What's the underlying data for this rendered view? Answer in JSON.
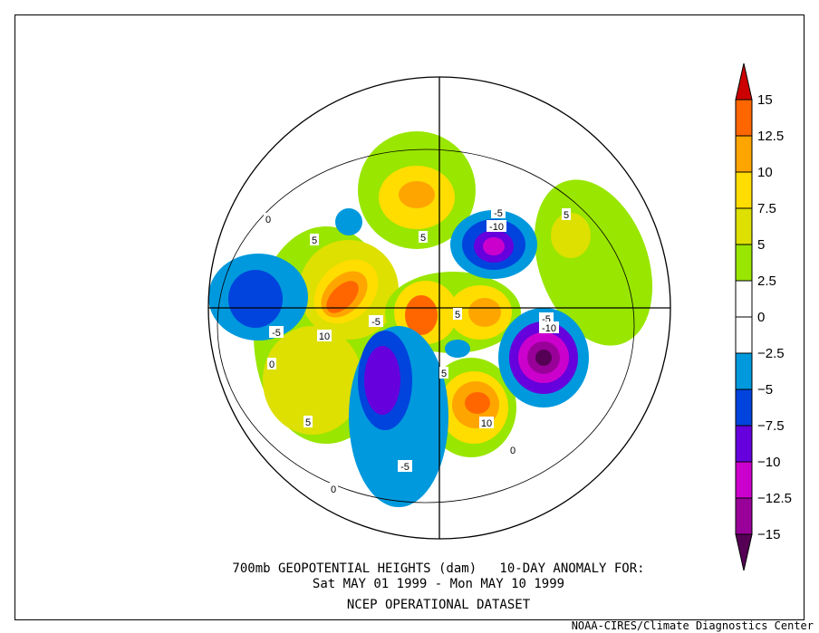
{
  "title": {
    "line1": "700mb GEOPOTENTIAL HEIGHTS (dam)   10-DAY ANOMALY FOR:",
    "line2": "Sat MAY 01 1999 - Mon MAY 10 1999",
    "line3": "NCEP OPERATIONAL DATASET"
  },
  "credit": "NOAA-CIRES/Climate Diagnostics Center",
  "legend": {
    "levels": [
      "15",
      "12.5",
      "10",
      "7.5",
      "5",
      "2.5",
      "0",
      "-2.5",
      "-5",
      "-7.5",
      "-10",
      "-12.5",
      "-15"
    ],
    "colors": [
      "#cc0000",
      "#ff6600",
      "#ffa500",
      "#ffdd00",
      "#dde000",
      "#99e600",
      "#ffffff",
      "#ffffff",
      "#0099dd",
      "#0044dd",
      "#6600dd",
      "#cc00cc",
      "#990099",
      "#550055"
    ]
  },
  "contour_labels": [
    "-5",
    "10",
    "5",
    "5",
    "-5",
    "10",
    "-5",
    "-10",
    "5",
    "5",
    "-5",
    "-10",
    "-5",
    "5",
    "5",
    "0",
    "0",
    "0",
    "0"
  ]
}
